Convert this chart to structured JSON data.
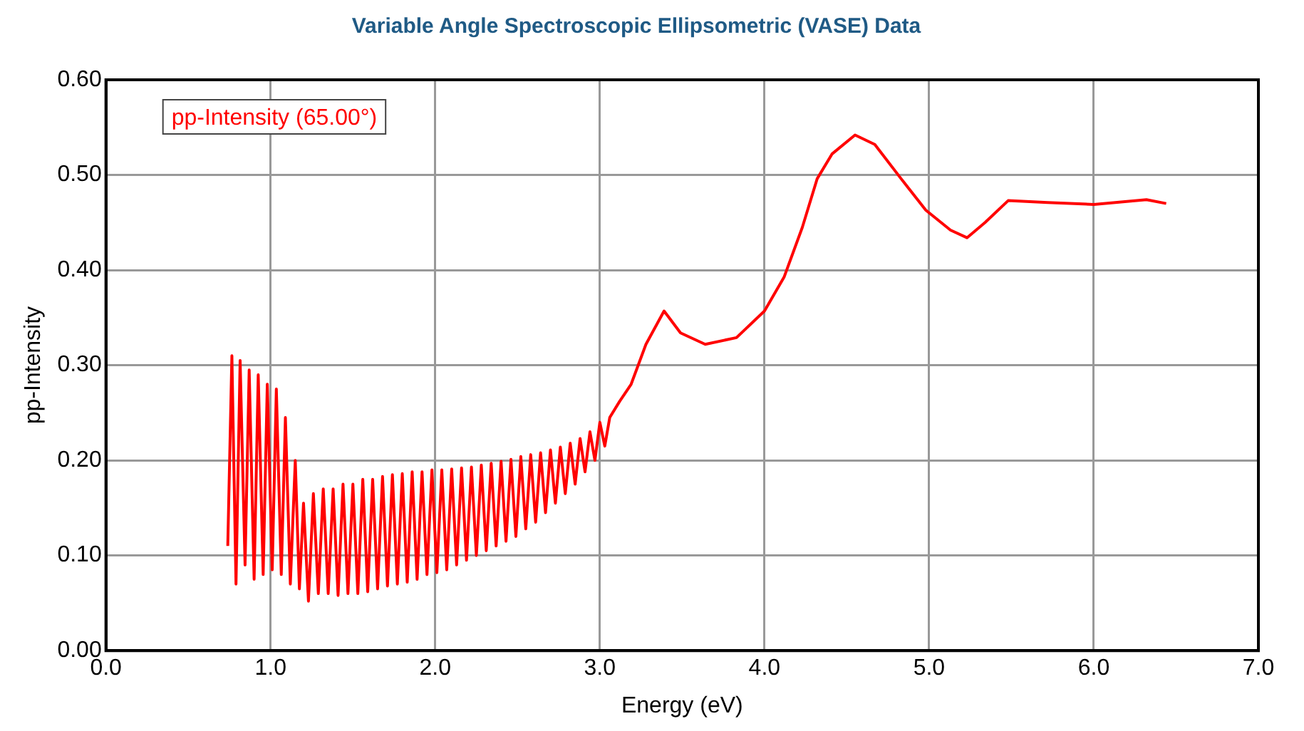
{
  "chart_data": {
    "type": "line",
    "title": "Variable Angle Spectroscopic Ellipsometric (VASE) Data",
    "xlabel": "Energy (eV)",
    "ylabel": "pp-Intensity",
    "xlim": [
      0,
      7
    ],
    "ylim": [
      0,
      0.6
    ],
    "xticks": [
      {
        "value": 0,
        "label": "0.0"
      },
      {
        "value": 1,
        "label": "1.0"
      },
      {
        "value": 2,
        "label": "2.0"
      },
      {
        "value": 3,
        "label": "3.0"
      },
      {
        "value": 4,
        "label": "4.0"
      },
      {
        "value": 5,
        "label": "5.0"
      },
      {
        "value": 6,
        "label": "6.0"
      },
      {
        "value": 7,
        "label": "7.0"
      }
    ],
    "yticks": [
      {
        "value": 0,
        "label": "0.00"
      },
      {
        "value": 0.1,
        "label": "0.10"
      },
      {
        "value": 0.2,
        "label": "0.20"
      },
      {
        "value": 0.3,
        "label": "0.30"
      },
      {
        "value": 0.4,
        "label": "0.40"
      },
      {
        "value": 0.5,
        "label": "0.50"
      },
      {
        "value": 0.6,
        "label": "0.60"
      }
    ],
    "grid": true,
    "legend": "top left",
    "marker": "none",
    "line_style": "solid",
    "series": [
      {
        "name": "pp-Intensity (65.00°)",
        "color": "#ff0000",
        "x": [
          0.74,
          0.765,
          0.79,
          0.815,
          0.845,
          0.87,
          0.9,
          0.925,
          0.955,
          0.98,
          1.01,
          1.035,
          1.065,
          1.09,
          1.12,
          1.15,
          1.175,
          1.2,
          1.23,
          1.26,
          1.29,
          1.32,
          1.35,
          1.38,
          1.41,
          1.44,
          1.47,
          1.5,
          1.53,
          1.56,
          1.59,
          1.62,
          1.65,
          1.68,
          1.71,
          1.74,
          1.77,
          1.8,
          1.83,
          1.86,
          1.89,
          1.92,
          1.95,
          1.98,
          2.01,
          2.04,
          2.07,
          2.1,
          2.13,
          2.16,
          2.19,
          2.22,
          2.25,
          2.28,
          2.31,
          2.34,
          2.37,
          2.4,
          2.43,
          2.46,
          2.49,
          2.52,
          2.55,
          2.58,
          2.61,
          2.64,
          2.67,
          2.7,
          2.73,
          2.76,
          2.79,
          2.82,
          2.85,
          2.88,
          2.91,
          2.94,
          2.97,
          3.0,
          3.03,
          3.06,
          3.12,
          3.19,
          3.28,
          3.39,
          3.49,
          3.64,
          3.83,
          4.0,
          4.12,
          4.23,
          4.32,
          4.41,
          4.55,
          4.67,
          4.83,
          4.98,
          5.13,
          5.23,
          5.34,
          5.48,
          5.72,
          6.0,
          6.32,
          6.44
        ],
        "values": [
          0.11,
          0.31,
          0.07,
          0.305,
          0.09,
          0.295,
          0.075,
          0.29,
          0.08,
          0.28,
          0.085,
          0.275,
          0.08,
          0.245,
          0.07,
          0.2,
          0.065,
          0.155,
          0.052,
          0.165,
          0.06,
          0.17,
          0.06,
          0.17,
          0.058,
          0.175,
          0.06,
          0.175,
          0.06,
          0.18,
          0.062,
          0.18,
          0.065,
          0.183,
          0.068,
          0.185,
          0.07,
          0.186,
          0.072,
          0.188,
          0.075,
          0.188,
          0.08,
          0.19,
          0.082,
          0.19,
          0.085,
          0.191,
          0.09,
          0.192,
          0.095,
          0.193,
          0.1,
          0.195,
          0.105,
          0.197,
          0.11,
          0.199,
          0.115,
          0.201,
          0.12,
          0.204,
          0.128,
          0.206,
          0.135,
          0.208,
          0.145,
          0.211,
          0.155,
          0.214,
          0.165,
          0.218,
          0.175,
          0.223,
          0.188,
          0.23,
          0.2,
          0.24,
          0.215,
          0.245,
          0.262,
          0.28,
          0.322,
          0.357,
          0.334,
          0.322,
          0.329,
          0.357,
          0.393,
          0.445,
          0.496,
          0.522,
          0.542,
          0.532,
          0.496,
          0.463,
          0.442,
          0.434,
          0.45,
          0.473,
          0.471,
          0.469,
          0.474,
          0.47
        ]
      }
    ]
  }
}
